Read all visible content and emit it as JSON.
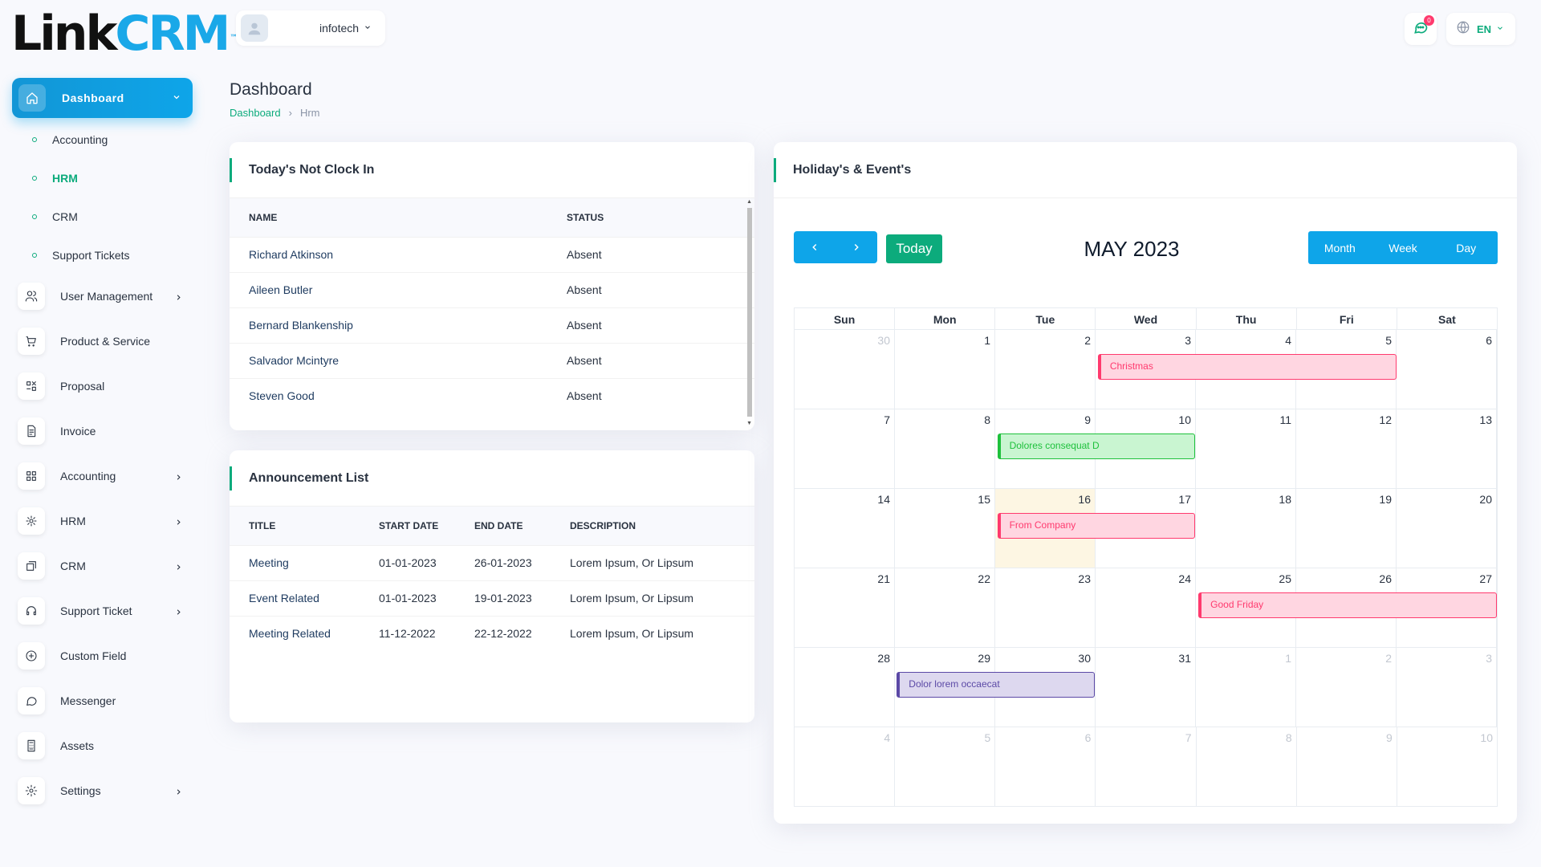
{
  "brand": {
    "part1": "Link",
    "part2": "CRM",
    "tm": "™"
  },
  "sidebar": {
    "active": {
      "label": "Dashboard"
    },
    "sub_items": [
      {
        "label": "Accounting",
        "active": false
      },
      {
        "label": "HRM",
        "active": true
      },
      {
        "label": "CRM",
        "active": false
      },
      {
        "label": "Support Tickets",
        "active": false
      }
    ],
    "items": [
      {
        "label": "User Management",
        "icon": "users-icon",
        "chevron": true
      },
      {
        "label": "Product & Service",
        "icon": "cart-icon",
        "chevron": false
      },
      {
        "label": "Proposal",
        "icon": "proposal-icon",
        "chevron": false
      },
      {
        "label": "Invoice",
        "icon": "invoice-icon",
        "chevron": false
      },
      {
        "label": "Accounting",
        "icon": "grid-icon",
        "chevron": true
      },
      {
        "label": "HRM",
        "icon": "hrm-icon",
        "chevron": true
      },
      {
        "label": "CRM",
        "icon": "crm-icon",
        "chevron": true
      },
      {
        "label": "Support Ticket",
        "icon": "headset-icon",
        "chevron": true
      },
      {
        "label": "Custom Field",
        "icon": "plus-circle-icon",
        "chevron": false
      },
      {
        "label": "Messenger",
        "icon": "chat-icon",
        "chevron": false
      },
      {
        "label": "Assets",
        "icon": "calculator-icon",
        "chevron": false
      },
      {
        "label": "Settings",
        "icon": "gear-icon",
        "chevron": true
      }
    ]
  },
  "header": {
    "user_name": "infotech",
    "notification_count": "0",
    "language": "EN"
  },
  "page": {
    "title": "Dashboard",
    "breadcrumb": [
      "Dashboard",
      "Hrm"
    ]
  },
  "not_clock_in": {
    "title": "Today's Not Clock In",
    "columns": [
      "Name",
      "Status"
    ],
    "rows": [
      {
        "name": "Richard Atkinson",
        "status": "Absent"
      },
      {
        "name": "Aileen Butler",
        "status": "Absent"
      },
      {
        "name": "Bernard Blankenship",
        "status": "Absent"
      },
      {
        "name": "Salvador Mcintyre",
        "status": "Absent"
      },
      {
        "name": "Steven Good",
        "status": "Absent"
      }
    ]
  },
  "announcements": {
    "title": "Announcement List",
    "columns": [
      "Title",
      "Start Date",
      "End Date",
      "Description"
    ],
    "rows": [
      {
        "title": "Meeting",
        "start": "01-01-2023",
        "end": "26-01-2023",
        "description": "Lorem Ipsum, Or Lipsum"
      },
      {
        "title": "Event Related",
        "start": "01-01-2023",
        "end": "19-01-2023",
        "description": "Lorem Ipsum, Or Lipsum"
      },
      {
        "title": "Meeting Related",
        "start": "11-12-2022",
        "end": "22-12-2022",
        "description": "Lorem Ipsum, Or Lipsum"
      }
    ]
  },
  "calendar": {
    "title": "Holiday's & Event's",
    "month_label": "MAY 2023",
    "today_label": "Today",
    "views": [
      "Month",
      "Week",
      "Day"
    ],
    "weekdays": [
      "Sun",
      "Mon",
      "Tue",
      "Wed",
      "Thu",
      "Fri",
      "Sat"
    ],
    "weeks": [
      [
        "30",
        "1",
        "2",
        "3",
        "4",
        "5",
        "6"
      ],
      [
        "7",
        "8",
        "9",
        "10",
        "11",
        "12",
        "13"
      ],
      [
        "14",
        "15",
        "16",
        "17",
        "18",
        "19",
        "20"
      ],
      [
        "21",
        "22",
        "23",
        "24",
        "25",
        "26",
        "27"
      ],
      [
        "28",
        "29",
        "30",
        "31",
        "1",
        "2",
        "3"
      ],
      [
        "4",
        "5",
        "6",
        "7",
        "8",
        "9",
        "10"
      ]
    ],
    "today": {
      "week": 2,
      "day": 2
    },
    "events": [
      {
        "title": "Christmas",
        "week": 0,
        "start_day": 3,
        "span": 3,
        "color": "#ff3a6e",
        "bg": "#ffd6e1"
      },
      {
        "title": "Dolores consequat D",
        "week": 1,
        "start_day": 2,
        "span": 2,
        "color": "#1ec13c",
        "bg": "#c9f5d1"
      },
      {
        "title": "From Company",
        "week": 2,
        "start_day": 2,
        "span": 2,
        "color": "#ff3a6e",
        "bg": "#ffd6e1"
      },
      {
        "title": "Good Friday",
        "week": 3,
        "start_day": 4,
        "span": 3,
        "color": "#ff3a6e",
        "bg": "#ffd6e1"
      },
      {
        "title": "Dolor lorem occaecat",
        "week": 4,
        "start_day": 1,
        "span": 2,
        "color": "#5b49a6",
        "bg": "#ddd8ef"
      }
    ]
  }
}
